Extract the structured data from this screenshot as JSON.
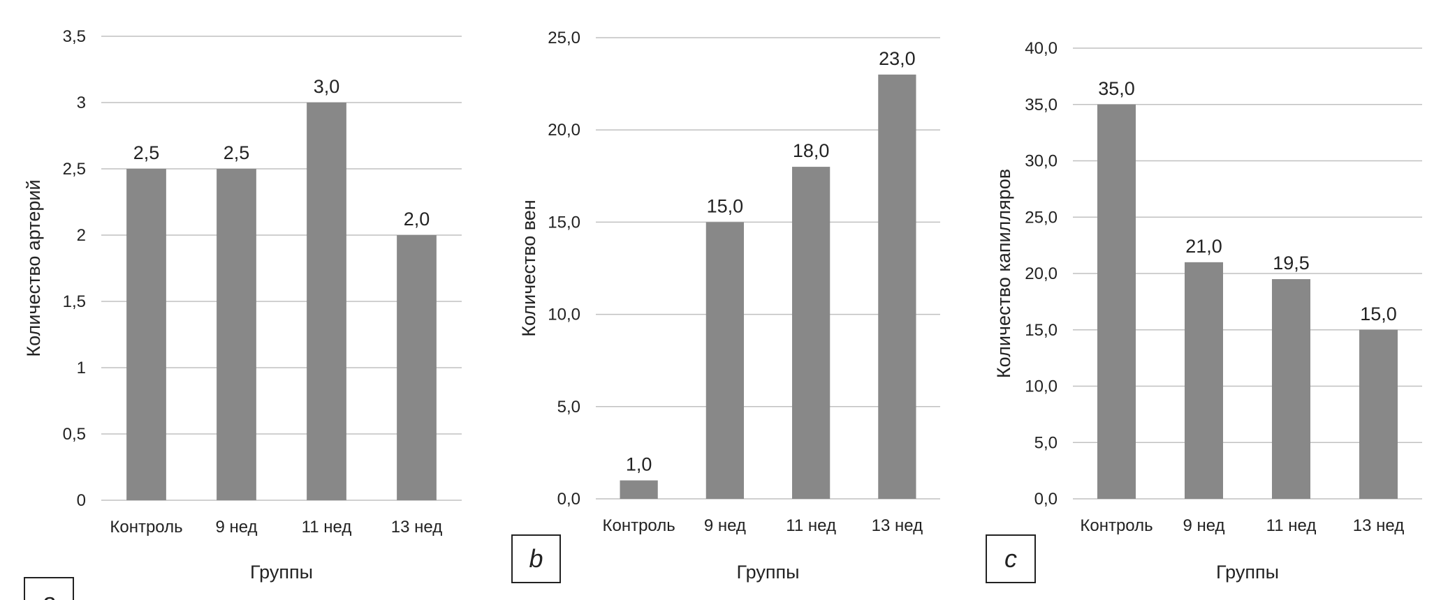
{
  "chart_data": [
    {
      "type": "bar",
      "panel_label": "a",
      "categories": [
        "Контроль",
        "9 нед",
        "11 нед",
        "13 нед"
      ],
      "values": [
        2.5,
        2.5,
        3.0,
        2.0
      ],
      "data_labels": [
        "2,5",
        "2,5",
        "3,0",
        "2,0"
      ],
      "xlabel": "Группы",
      "ylabel": "Количество артерий",
      "ylim": [
        0,
        3.5
      ],
      "yticks": [
        "0",
        "0,5",
        "1",
        "1,5",
        "2",
        "2,5",
        "3",
        "3,5"
      ],
      "grid": true,
      "bar_color": "#888888"
    },
    {
      "type": "bar",
      "panel_label": "b",
      "categories": [
        "Контроль",
        "9 нед",
        "11 нед",
        "13 нед"
      ],
      "values": [
        1.0,
        15.0,
        18.0,
        23.0
      ],
      "data_labels": [
        "1,0",
        "15,0",
        "18,0",
        "23,0"
      ],
      "xlabel": "Группы",
      "ylabel": "Количество вен",
      "ylim": [
        0,
        25
      ],
      "yticks": [
        "0,0",
        "5,0",
        "10,0",
        "15,0",
        "20,0",
        "25,0"
      ],
      "grid": true,
      "bar_color": "#888888"
    },
    {
      "type": "bar",
      "panel_label": "c",
      "categories": [
        "Контроль",
        "9 нед",
        "11 нед",
        "13 нед"
      ],
      "values": [
        35.0,
        21.0,
        19.5,
        15.0
      ],
      "data_labels": [
        "35,0",
        "21,0",
        "19,5",
        "15,0"
      ],
      "xlabel": "Группы",
      "ylabel": "Количество капилляров",
      "ylim": [
        0,
        40
      ],
      "yticks": [
        "0,0",
        "5,0",
        "10,0",
        "15,0",
        "20,0",
        "25,0",
        "30,0",
        "35,0",
        "40,0"
      ],
      "grid": true,
      "bar_color": "#888888"
    }
  ]
}
